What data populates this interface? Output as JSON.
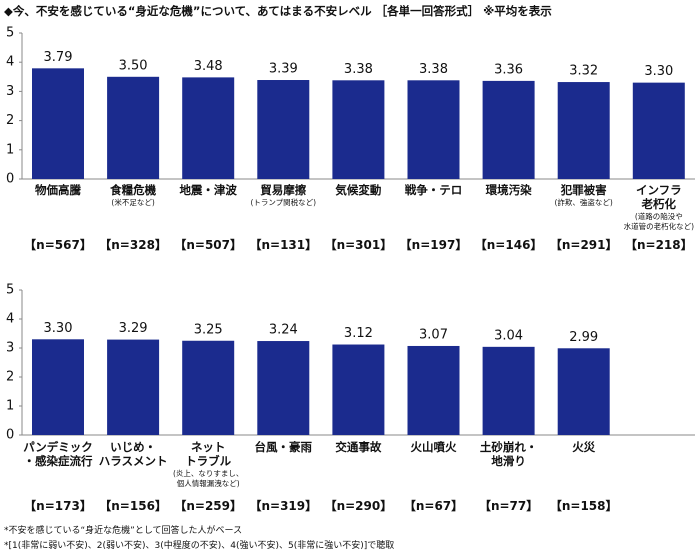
{
  "title": "◆今、不安を感じている“身近な危機”について、あてはまる不安レベル ［各単一回答形式］ ※平均を表示",
  "footnotes": [
    "*不安を感じている“身近な危機”として回答した人がベース",
    "*[1(非常に弱い不安)、2(弱い不安)、3(中程度の不安)、4(強い不安)、5(非常に強い不安)]で聴取"
  ],
  "chart_data": [
    {
      "type": "bar",
      "categories": [
        "物価高騰",
        "食糧危機",
        "地震・津波",
        "貿易摩擦",
        "気候変動",
        "戦争・テロ",
        "環境汚染",
        "犯罪被害",
        "インフラ\n老朽化"
      ],
      "category_notes": [
        null,
        "(米不足など)",
        null,
        "(トランプ関税など)",
        null,
        null,
        null,
        "(詐欺、強盗など)",
        "(道路の陥没や\n水道管の老朽化など)"
      ],
      "sample_sizes": [
        "【n=567】",
        "【n=328】",
        "【n=507】",
        "【n=131】",
        "【n=301】",
        "【n=197】",
        "【n=146】",
        "【n=291】",
        "【n=218】"
      ],
      "values": [
        3.79,
        3.5,
        3.48,
        3.39,
        3.38,
        3.38,
        3.36,
        3.32,
        3.3
      ],
      "value_labels": [
        "3.79",
        "3.50",
        "3.48",
        "3.39",
        "3.38",
        "3.38",
        "3.36",
        "3.32",
        "3.30"
      ],
      "color": "#1b2b8e",
      "ylim": [
        0,
        5
      ],
      "yticks": [
        0,
        1,
        2,
        3,
        4,
        5
      ]
    },
    {
      "type": "bar",
      "categories": [
        "パンデミック\n・感染症流行",
        "いじめ・\nハラスメント",
        "ネット\nトラブル",
        "台風・豪雨",
        "交通事故",
        "火山噴火",
        "土砂崩れ・\n地滑り",
        "火災"
      ],
      "category_notes": [
        null,
        null,
        "(炎上、なりすまし、\n個人情報漏洩など)",
        null,
        null,
        null,
        null,
        null
      ],
      "sample_sizes": [
        "【n=173】",
        "【n=156】",
        "【n=259】",
        "【n=319】",
        "【n=290】",
        "【n=67】",
        "【n=77】",
        "【n=158】"
      ],
      "values": [
        3.3,
        3.29,
        3.25,
        3.24,
        3.12,
        3.07,
        3.04,
        2.99
      ],
      "value_labels": [
        "3.30",
        "3.29",
        "3.25",
        "3.24",
        "3.12",
        "3.07",
        "3.04",
        "2.99"
      ],
      "color": "#1b2b8e",
      "ylim": [
        0,
        5
      ],
      "yticks": [
        0,
        1,
        2,
        3,
        4,
        5
      ]
    }
  ]
}
